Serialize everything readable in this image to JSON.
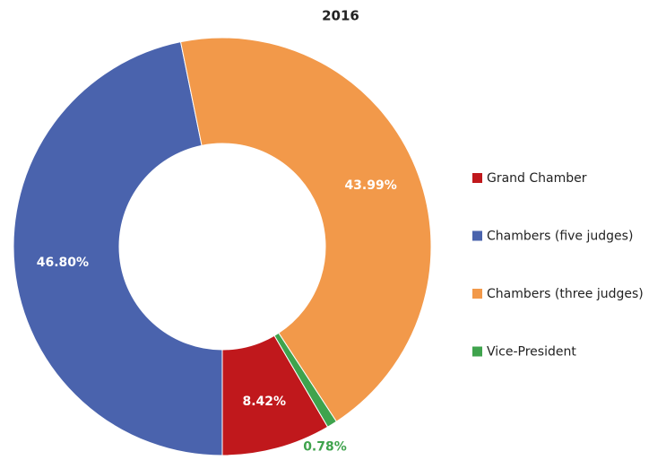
{
  "chart_data": {
    "type": "donut",
    "title": "2016",
    "categories": [
      "Grand Chamber",
      "Chambers (five judges)",
      "Chambers (three judges)",
      "Vice-President"
    ],
    "values": [
      8.42,
      46.8,
      43.99,
      0.78
    ],
    "value_labels": [
      "8.42%",
      "46.80%",
      "43.99%",
      "0.78%"
    ],
    "colors": [
      "#c0181c",
      "#4a63ad",
      "#f2994a",
      "#3fa34d"
    ],
    "legend": "right"
  }
}
